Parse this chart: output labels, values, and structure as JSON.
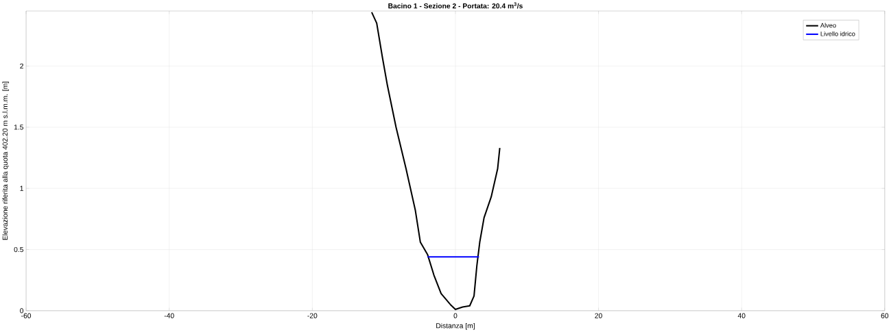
{
  "chart_data": {
    "type": "line",
    "title": "Bacino 1 - Sezione 2 - Portata: 20.4 m$^{3}$/s",
    "xlabel": "Distanza [m]",
    "ylabel": "Elevazione riferita alla quota 402.20 m s.l.m.m. [m]",
    "series": [
      {
        "name": "Alveo",
        "color": "#000000",
        "x": [
          -11.7,
          -11.0,
          -10.2,
          -9.5,
          -8.3,
          -6.9,
          -5.6,
          -4.9,
          -3.9,
          -3.0,
          -2.0,
          -0.7,
          0,
          1.0,
          2.0,
          2.6,
          3.0,
          3.4,
          4.0,
          5.0,
          5.9,
          6.2
        ],
        "values": [
          2.44,
          2.35,
          2.07,
          1.84,
          1.5,
          1.16,
          0.82,
          0.56,
          0.46,
          0.29,
          0.14,
          0.05,
          0.01,
          0.03,
          0.04,
          0.12,
          0.37,
          0.56,
          0.76,
          0.93,
          1.16,
          1.33
        ]
      },
      {
        "name": "Livello idrico",
        "color": "#0000ff",
        "x": [
          -3.9,
          3.3
        ],
        "values": [
          0.44,
          0.44
        ]
      }
    ],
    "xlim": [
      -60,
      60
    ],
    "ylim": [
      0,
      2.45
    ],
    "xticks": [
      -60,
      -40,
      -20,
      0,
      20,
      40,
      60
    ],
    "yticks": [
      0,
      0.5,
      1,
      1.5,
      2
    ],
    "grid": true,
    "legend": "top right",
    "marker": "none",
    "line_style": "solid"
  }
}
